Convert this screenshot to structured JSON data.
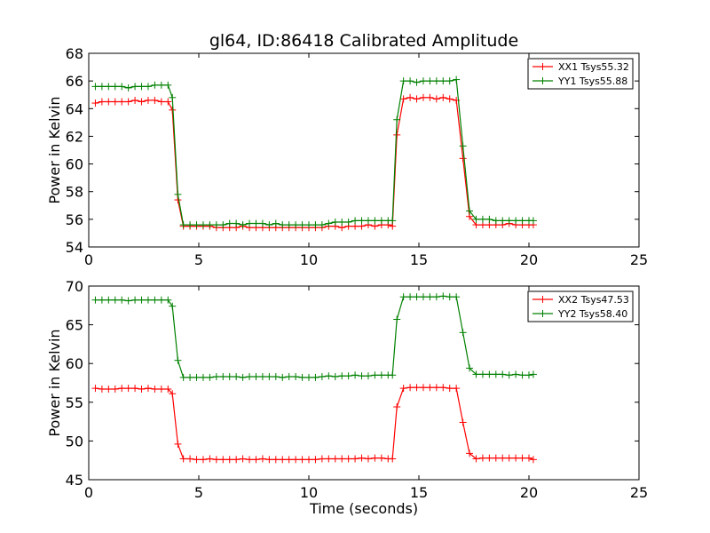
{
  "title": "gl64, ID:86418 Calibrated Amplitude",
  "colors": {
    "XX": "#ff0000",
    "YY": "#008000"
  },
  "chart_data": [
    {
      "type": "line",
      "title": "gl64, ID:86418 Calibrated Amplitude",
      "xlabel": "",
      "ylabel": "Power in Kelvin",
      "xlim": [
        0,
        25
      ],
      "ylim": [
        54,
        68
      ],
      "xticks": [
        "0",
        "5",
        "10",
        "15",
        "20",
        "25"
      ],
      "yticks": [
        "54",
        "56",
        "58",
        "60",
        "62",
        "64",
        "66",
        "68"
      ],
      "grid": false,
      "legend_position": "top-right",
      "x": [
        0.3,
        0.6,
        0.9,
        1.2,
        1.5,
        1.8,
        2.1,
        2.4,
        2.7,
        3.0,
        3.3,
        3.6,
        3.8,
        4.05,
        4.3,
        4.6,
        4.9,
        5.2,
        5.5,
        5.8,
        6.1,
        6.4,
        6.7,
        7.0,
        7.3,
        7.6,
        7.9,
        8.2,
        8.5,
        8.8,
        9.1,
        9.4,
        9.7,
        10.0,
        10.3,
        10.6,
        10.9,
        11.2,
        11.5,
        11.8,
        12.1,
        12.4,
        12.7,
        13.0,
        13.3,
        13.6,
        13.8,
        14.0,
        14.3,
        14.6,
        14.9,
        15.2,
        15.5,
        15.8,
        16.1,
        16.4,
        16.7,
        17.0,
        17.3,
        17.6,
        17.9,
        18.2,
        18.5,
        18.8,
        19.1,
        19.4,
        19.7,
        20.0,
        20.2
      ],
      "series": [
        {
          "name": "XX1 Tsys55.32",
          "color": "#ff0000",
          "values": [
            64.4,
            64.5,
            64.5,
            64.5,
            64.5,
            64.5,
            64.6,
            64.5,
            64.6,
            64.6,
            64.5,
            64.5,
            63.9,
            57.4,
            55.5,
            55.5,
            55.5,
            55.5,
            55.5,
            55.4,
            55.4,
            55.4,
            55.4,
            55.5,
            55.4,
            55.4,
            55.4,
            55.4,
            55.4,
            55.4,
            55.4,
            55.4,
            55.4,
            55.4,
            55.4,
            55.4,
            55.5,
            55.5,
            55.4,
            55.5,
            55.5,
            55.5,
            55.6,
            55.5,
            55.6,
            55.6,
            55.5,
            62.1,
            64.7,
            64.8,
            64.7,
            64.8,
            64.8,
            64.7,
            64.8,
            64.7,
            64.6,
            60.4,
            56.2,
            55.6,
            55.6,
            55.6,
            55.6,
            55.6,
            55.7,
            55.6,
            55.6,
            55.6,
            55.6
          ]
        },
        {
          "name": "YY1 Tsys55.88",
          "color": "#008000",
          "values": [
            65.6,
            65.6,
            65.6,
            65.6,
            65.6,
            65.5,
            65.6,
            65.6,
            65.6,
            65.7,
            65.7,
            65.7,
            64.8,
            57.8,
            55.6,
            55.6,
            55.6,
            55.6,
            55.6,
            55.6,
            55.6,
            55.7,
            55.7,
            55.6,
            55.7,
            55.7,
            55.7,
            55.6,
            55.7,
            55.6,
            55.6,
            55.6,
            55.6,
            55.6,
            55.6,
            55.6,
            55.7,
            55.8,
            55.8,
            55.8,
            55.9,
            55.9,
            55.9,
            55.9,
            55.9,
            55.9,
            55.9,
            63.2,
            66.0,
            66.0,
            65.9,
            66.0,
            66.0,
            66.0,
            66.0,
            66.0,
            66.1,
            61.3,
            56.6,
            56.0,
            56.0,
            56.0,
            55.9,
            55.9,
            55.9,
            55.9,
            55.9,
            55.9,
            55.9
          ]
        }
      ]
    },
    {
      "type": "line",
      "title": "",
      "xlabel": "Time (seconds)",
      "ylabel": "Power in Kelvin",
      "xlim": [
        0,
        25
      ],
      "ylim": [
        45,
        70
      ],
      "xticks": [
        "0",
        "5",
        "10",
        "15",
        "20",
        "25"
      ],
      "yticks": [
        "45",
        "50",
        "55",
        "60",
        "65",
        "70"
      ],
      "grid": false,
      "legend_position": "top-right",
      "x": [
        0.3,
        0.6,
        0.9,
        1.2,
        1.5,
        1.8,
        2.1,
        2.4,
        2.7,
        3.0,
        3.3,
        3.6,
        3.8,
        4.05,
        4.3,
        4.6,
        4.9,
        5.2,
        5.5,
        5.8,
        6.1,
        6.4,
        6.7,
        7.0,
        7.3,
        7.6,
        7.9,
        8.2,
        8.5,
        8.8,
        9.1,
        9.4,
        9.7,
        10.0,
        10.3,
        10.6,
        10.9,
        11.2,
        11.5,
        11.8,
        12.1,
        12.4,
        12.7,
        13.0,
        13.3,
        13.6,
        13.8,
        14.0,
        14.3,
        14.6,
        14.9,
        15.2,
        15.5,
        15.8,
        16.1,
        16.4,
        16.7,
        17.0,
        17.3,
        17.6,
        17.9,
        18.2,
        18.5,
        18.8,
        19.1,
        19.4,
        19.7,
        20.0,
        20.2
      ],
      "series": [
        {
          "name": "XX2 Tsys47.53",
          "color": "#ff0000",
          "values": [
            56.8,
            56.7,
            56.7,
            56.7,
            56.8,
            56.8,
            56.8,
            56.7,
            56.8,
            56.7,
            56.7,
            56.7,
            56.1,
            49.6,
            47.7,
            47.7,
            47.6,
            47.6,
            47.7,
            47.6,
            47.6,
            47.6,
            47.6,
            47.7,
            47.6,
            47.6,
            47.7,
            47.6,
            47.6,
            47.6,
            47.6,
            47.6,
            47.6,
            47.6,
            47.6,
            47.7,
            47.7,
            47.7,
            47.7,
            47.7,
            47.7,
            47.8,
            47.7,
            47.8,
            47.8,
            47.7,
            47.7,
            54.4,
            56.8,
            56.9,
            56.9,
            56.9,
            56.9,
            56.9,
            56.9,
            56.8,
            56.8,
            52.4,
            48.4,
            47.7,
            47.8,
            47.8,
            47.8,
            47.8,
            47.8,
            47.8,
            47.8,
            47.8,
            47.6
          ]
        },
        {
          "name": "YY2 Tsys58.40",
          "color": "#008000",
          "values": [
            68.2,
            68.2,
            68.2,
            68.2,
            68.2,
            68.1,
            68.2,
            68.2,
            68.2,
            68.2,
            68.2,
            68.2,
            67.4,
            60.4,
            58.2,
            58.2,
            58.2,
            58.2,
            58.2,
            58.3,
            58.3,
            58.3,
            58.3,
            58.2,
            58.3,
            58.3,
            58.3,
            58.3,
            58.3,
            58.2,
            58.3,
            58.3,
            58.2,
            58.2,
            58.2,
            58.3,
            58.4,
            58.3,
            58.4,
            58.4,
            58.5,
            58.4,
            58.4,
            58.5,
            58.5,
            58.5,
            58.5,
            65.7,
            68.6,
            68.6,
            68.6,
            68.6,
            68.6,
            68.6,
            68.7,
            68.6,
            68.6,
            64.0,
            59.4,
            58.6,
            58.6,
            58.6,
            58.6,
            58.6,
            58.5,
            58.6,
            58.5,
            58.5,
            58.6
          ]
        }
      ]
    }
  ]
}
